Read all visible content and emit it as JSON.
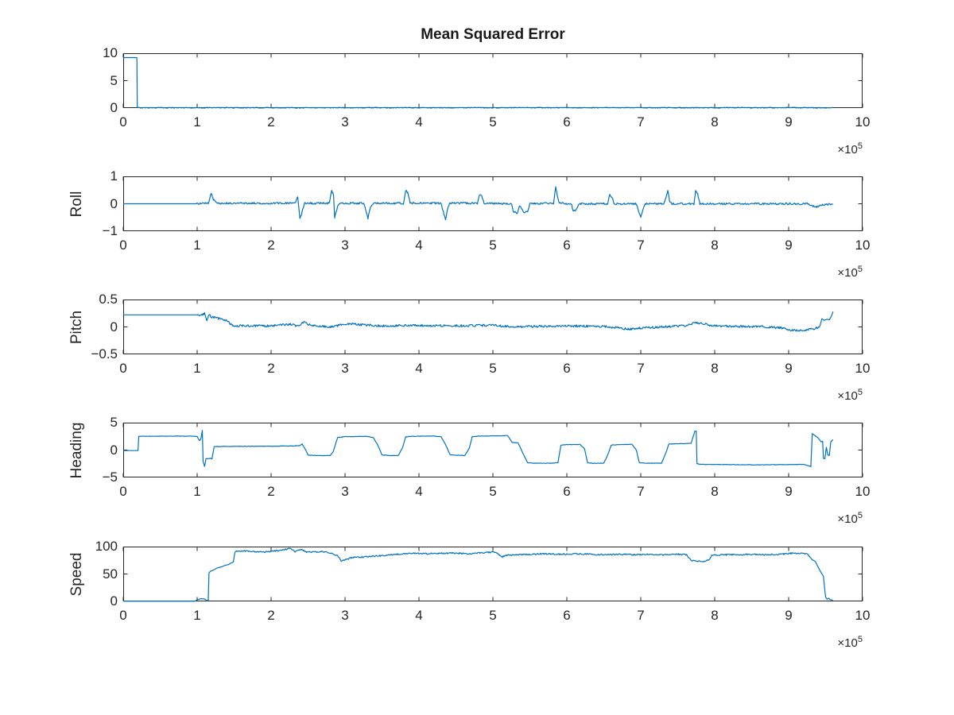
{
  "figure": {
    "title": "Mean Squared Error",
    "background": "#ffffff",
    "axis_color": "#262626",
    "line_color": "#0072BD",
    "offset_label": {
      "base": "×10",
      "exp": "5"
    }
  },
  "chart_data": [
    {
      "type": "line",
      "name": "mse",
      "title": "Mean Squared Error",
      "ylabel": "",
      "xlim": [
        0,
        10
      ],
      "ylim": [
        0,
        10
      ],
      "x_unit": "1e5",
      "xticks": [
        0,
        1,
        2,
        3,
        4,
        5,
        6,
        7,
        8,
        9,
        10
      ],
      "xtick_labels": [
        "0",
        "1",
        "2",
        "3",
        "4",
        "5",
        "6",
        "7",
        "8",
        "9",
        "10"
      ],
      "yticks": [
        0,
        5,
        10
      ],
      "ytick_labels": [
        "0",
        "5",
        "10"
      ],
      "keypoints": [
        [
          0,
          9.2
        ],
        [
          0.185,
          9.2
        ],
        [
          0.19,
          0.06
        ],
        [
          9.6,
          0.06
        ]
      ],
      "noise": [
        [
          0.19,
          9.6,
          0.08
        ]
      ]
    },
    {
      "type": "line",
      "name": "roll",
      "title": "",
      "ylabel": "Roll",
      "xlim": [
        0,
        10
      ],
      "ylim": [
        -1,
        1
      ],
      "x_unit": "1e5",
      "xticks": [
        0,
        1,
        2,
        3,
        4,
        5,
        6,
        7,
        8,
        9,
        10
      ],
      "xtick_labels": [
        "0",
        "1",
        "2",
        "3",
        "4",
        "5",
        "6",
        "7",
        "8",
        "9",
        "10"
      ],
      "yticks": [
        -1,
        0,
        1
      ],
      "ytick_labels": [
        "−1",
        "0",
        "1"
      ],
      "keypoints": [
        [
          0,
          0
        ],
        [
          1.0,
          0
        ],
        [
          1.15,
          0.02
        ],
        [
          1.19,
          0.38
        ],
        [
          1.22,
          0.15
        ],
        [
          1.26,
          0.05
        ],
        [
          1.32,
          0.02
        ],
        [
          2.33,
          0.02
        ],
        [
          2.36,
          0.28
        ],
        [
          2.39,
          -0.55
        ],
        [
          2.42,
          -0.3
        ],
        [
          2.45,
          0.02
        ],
        [
          2.79,
          0.02
        ],
        [
          2.82,
          0.5
        ],
        [
          2.845,
          0.3
        ],
        [
          2.86,
          -0.5
        ],
        [
          2.89,
          -0.2
        ],
        [
          2.92,
          0.02
        ],
        [
          3.25,
          0.02
        ],
        [
          3.28,
          -0.2
        ],
        [
          3.31,
          -0.55
        ],
        [
          3.34,
          -0.15
        ],
        [
          3.38,
          0.02
        ],
        [
          3.79,
          0.02
        ],
        [
          3.82,
          0.5
        ],
        [
          3.85,
          0.4
        ],
        [
          3.88,
          0.02
        ],
        [
          4.3,
          0.02
        ],
        [
          4.33,
          -0.3
        ],
        [
          4.36,
          -0.6
        ],
        [
          4.39,
          -0.15
        ],
        [
          4.42,
          0.02
        ],
        [
          4.79,
          0.02
        ],
        [
          4.82,
          0.35
        ],
        [
          4.85,
          0.28
        ],
        [
          4.88,
          0.02
        ],
        [
          5.25,
          0
        ],
        [
          5.28,
          -0.3
        ],
        [
          5.33,
          -0.33
        ],
        [
          5.36,
          -0.05
        ],
        [
          5.42,
          -0.3
        ],
        [
          5.47,
          -0.28
        ],
        [
          5.5,
          0
        ],
        [
          5.82,
          0.02
        ],
        [
          5.85,
          0.65
        ],
        [
          5.87,
          0.3
        ],
        [
          5.9,
          0.02
        ],
        [
          6.06,
          0
        ],
        [
          6.09,
          -0.28
        ],
        [
          6.13,
          -0.22
        ],
        [
          6.16,
          0
        ],
        [
          6.55,
          0
        ],
        [
          6.58,
          0.32
        ],
        [
          6.61,
          0.25
        ],
        [
          6.64,
          0
        ],
        [
          6.94,
          0
        ],
        [
          6.97,
          -0.25
        ],
        [
          7.0,
          -0.5
        ],
        [
          7.03,
          -0.2
        ],
        [
          7.06,
          0
        ],
        [
          7.31,
          0
        ],
        [
          7.34,
          0.22
        ],
        [
          7.365,
          0.5
        ],
        [
          7.39,
          0.1
        ],
        [
          7.42,
          0
        ],
        [
          7.72,
          0
        ],
        [
          7.74,
          0.45
        ],
        [
          7.77,
          0.35
        ],
        [
          7.8,
          0
        ],
        [
          9.25,
          0
        ],
        [
          9.32,
          -0.08
        ],
        [
          9.38,
          -0.12
        ],
        [
          9.45,
          -0.05
        ],
        [
          9.55,
          -0.02
        ],
        [
          9.6,
          -0.02
        ]
      ],
      "noise": [
        [
          1.0,
          9.6,
          0.035
        ]
      ]
    },
    {
      "type": "line",
      "name": "pitch",
      "title": "",
      "ylabel": "Pitch",
      "xlim": [
        0,
        10
      ],
      "ylim": [
        -0.5,
        0.5
      ],
      "x_unit": "1e5",
      "xticks": [
        0,
        1,
        2,
        3,
        4,
        5,
        6,
        7,
        8,
        9,
        10
      ],
      "xtick_labels": [
        "0",
        "1",
        "2",
        "3",
        "4",
        "5",
        "6",
        "7",
        "8",
        "9",
        "10"
      ],
      "yticks": [
        -0.5,
        0,
        0.5
      ],
      "ytick_labels": [
        "−0.5",
        "0",
        "0.5"
      ],
      "keypoints": [
        [
          0,
          0.22
        ],
        [
          1.0,
          0.22
        ],
        [
          1.05,
          0.21
        ],
        [
          1.1,
          0.24
        ],
        [
          1.13,
          0.1
        ],
        [
          1.16,
          0.22
        ],
        [
          1.2,
          0.18
        ],
        [
          1.3,
          0.15
        ],
        [
          1.4,
          0.12
        ],
        [
          1.45,
          0.05
        ],
        [
          1.5,
          0.02
        ],
        [
          1.7,
          0.02
        ],
        [
          2.0,
          0.02
        ],
        [
          2.25,
          0.05
        ],
        [
          2.35,
          0.02
        ],
        [
          2.45,
          0.08
        ],
        [
          2.55,
          0.02
        ],
        [
          2.8,
          0.0
        ],
        [
          3.05,
          0.06
        ],
        [
          3.2,
          0.04
        ],
        [
          3.5,
          0.02
        ],
        [
          4.0,
          0.03
        ],
        [
          4.5,
          0.02
        ],
        [
          5.0,
          0.03
        ],
        [
          5.3,
          0.0
        ],
        [
          5.6,
          0.01
        ],
        [
          6.0,
          0.02
        ],
        [
          6.5,
          0.01
        ],
        [
          6.85,
          -0.04
        ],
        [
          7.0,
          -0.02
        ],
        [
          7.3,
          0.0
        ],
        [
          7.6,
          0.02
        ],
        [
          7.72,
          0.08
        ],
        [
          7.85,
          0.06
        ],
        [
          7.95,
          0.02
        ],
        [
          8.3,
          0.01
        ],
        [
          8.6,
          0.01
        ],
        [
          8.9,
          -0.02
        ],
        [
          9.05,
          -0.06
        ],
        [
          9.2,
          -0.06
        ],
        [
          9.35,
          -0.03
        ],
        [
          9.42,
          0.0
        ],
        [
          9.45,
          0.15
        ],
        [
          9.48,
          0.12
        ],
        [
          9.52,
          0.14
        ],
        [
          9.55,
          0.13
        ],
        [
          9.58,
          0.2
        ],
        [
          9.6,
          0.28
        ]
      ],
      "noise": [
        [
          1.0,
          9.42,
          0.02
        ]
      ]
    },
    {
      "type": "line",
      "name": "heading",
      "title": "",
      "ylabel": "Heading",
      "xlim": [
        0,
        10
      ],
      "ylim": [
        -5,
        5
      ],
      "x_unit": "1e5",
      "xticks": [
        0,
        1,
        2,
        3,
        4,
        5,
        6,
        7,
        8,
        9,
        10
      ],
      "xtick_labels": [
        "0",
        "1",
        "2",
        "3",
        "4",
        "5",
        "6",
        "7",
        "8",
        "9",
        "10"
      ],
      "yticks": [
        -5,
        0,
        5
      ],
      "ytick_labels": [
        "−5",
        "0",
        "5"
      ],
      "keypoints": [
        [
          0,
          -0.1
        ],
        [
          0.2,
          -0.1
        ],
        [
          0.21,
          2.5
        ],
        [
          0.8,
          2.55
        ],
        [
          1.0,
          2.5
        ],
        [
          1.03,
          1.7
        ],
        [
          1.05,
          2.0
        ],
        [
          1.07,
          3.6
        ],
        [
          1.08,
          -2.0
        ],
        [
          1.1,
          -3.0
        ],
        [
          1.12,
          -1.6
        ],
        [
          1.18,
          -1.5
        ],
        [
          1.2,
          -1.6
        ],
        [
          1.23,
          0.6
        ],
        [
          1.3,
          0.65
        ],
        [
          2.0,
          0.7
        ],
        [
          2.3,
          0.75
        ],
        [
          2.38,
          0.8
        ],
        [
          2.42,
          1.1
        ],
        [
          2.46,
          0.2
        ],
        [
          2.5,
          -0.9
        ],
        [
          2.6,
          -1.0
        ],
        [
          2.8,
          -1.0
        ],
        [
          2.84,
          -0.3
        ],
        [
          2.9,
          2.3
        ],
        [
          3.0,
          2.45
        ],
        [
          3.3,
          2.5
        ],
        [
          3.38,
          2.3
        ],
        [
          3.44,
          1.0
        ],
        [
          3.5,
          -0.9
        ],
        [
          3.6,
          -1.0
        ],
        [
          3.72,
          -1.0
        ],
        [
          3.78,
          0.5
        ],
        [
          3.82,
          2.4
        ],
        [
          3.9,
          2.5
        ],
        [
          4.2,
          2.55
        ],
        [
          4.3,
          2.4
        ],
        [
          4.36,
          1.0
        ],
        [
          4.42,
          -0.85
        ],
        [
          4.5,
          -0.95
        ],
        [
          4.62,
          -1.0
        ],
        [
          4.68,
          0.3
        ],
        [
          4.72,
          2.4
        ],
        [
          4.8,
          2.55
        ],
        [
          5.1,
          2.6
        ],
        [
          5.2,
          2.65
        ],
        [
          5.26,
          1.4
        ],
        [
          5.3,
          1.35
        ],
        [
          5.34,
          1.3
        ],
        [
          5.38,
          0.2
        ],
        [
          5.42,
          -1.0
        ],
        [
          5.47,
          -2.3
        ],
        [
          5.55,
          -2.4
        ],
        [
          5.8,
          -2.4
        ],
        [
          5.88,
          -2.3
        ],
        [
          5.92,
          0.9
        ],
        [
          6.0,
          1.0
        ],
        [
          6.18,
          1.0
        ],
        [
          6.24,
          0.2
        ],
        [
          6.28,
          -2.3
        ],
        [
          6.35,
          -2.4
        ],
        [
          6.5,
          -2.4
        ],
        [
          6.55,
          -1.0
        ],
        [
          6.6,
          0.9
        ],
        [
          6.7,
          1.0
        ],
        [
          6.88,
          1.05
        ],
        [
          6.94,
          0.0
        ],
        [
          6.98,
          -2.3
        ],
        [
          7.05,
          -2.4
        ],
        [
          7.28,
          -2.4
        ],
        [
          7.34,
          -0.5
        ],
        [
          7.38,
          1.1
        ],
        [
          7.5,
          1.15
        ],
        [
          7.68,
          1.2
        ],
        [
          7.73,
          3.4
        ],
        [
          7.75,
          3.5
        ],
        [
          7.76,
          -2.5
        ],
        [
          7.8,
          -2.6
        ],
        [
          8.2,
          -2.65
        ],
        [
          8.6,
          -2.7
        ],
        [
          9.0,
          -2.65
        ],
        [
          9.2,
          -2.6
        ],
        [
          9.28,
          -2.9
        ],
        [
          9.3,
          -3.0
        ],
        [
          9.32,
          3.0
        ],
        [
          9.36,
          2.6
        ],
        [
          9.4,
          2.2
        ],
        [
          9.44,
          1.5
        ],
        [
          9.46,
          1.6
        ],
        [
          9.47,
          -1.5
        ],
        [
          9.49,
          -1.6
        ],
        [
          9.51,
          0.5
        ],
        [
          9.53,
          -0.9
        ],
        [
          9.55,
          -1.0
        ],
        [
          9.57,
          1.5
        ],
        [
          9.6,
          1.9
        ]
      ],
      "noise": [
        [
          0.22,
          9.3,
          0.04
        ]
      ]
    },
    {
      "type": "line",
      "name": "speed",
      "title": "",
      "ylabel": "Speed",
      "xlim": [
        0,
        10
      ],
      "ylim": [
        0,
        100
      ],
      "x_unit": "1e5",
      "xticks": [
        0,
        1,
        2,
        3,
        4,
        5,
        6,
        7,
        8,
        9,
        10
      ],
      "xtick_labels": [
        "0",
        "1",
        "2",
        "3",
        "4",
        "5",
        "6",
        "7",
        "8",
        "9",
        "10"
      ],
      "yticks": [
        0,
        50,
        100
      ],
      "ytick_labels": [
        "0",
        "50",
        "100"
      ],
      "keypoints": [
        [
          0,
          0.4
        ],
        [
          0.97,
          0.4
        ],
        [
          1.0,
          3
        ],
        [
          1.05,
          5
        ],
        [
          1.1,
          4.5
        ],
        [
          1.13,
          1.5
        ],
        [
          1.15,
          2
        ],
        [
          1.16,
          52
        ],
        [
          1.18,
          55
        ],
        [
          1.22,
          57
        ],
        [
          1.27,
          61
        ],
        [
          1.33,
          63
        ],
        [
          1.38,
          66
        ],
        [
          1.42,
          67
        ],
        [
          1.46,
          70
        ],
        [
          1.49,
          72
        ],
        [
          1.51,
          90
        ],
        [
          1.55,
          91
        ],
        [
          1.65,
          92
        ],
        [
          1.75,
          91
        ],
        [
          1.9,
          90
        ],
        [
          2.05,
          92
        ],
        [
          2.15,
          93
        ],
        [
          2.25,
          97
        ],
        [
          2.32,
          91
        ],
        [
          2.4,
          95
        ],
        [
          2.48,
          90
        ],
        [
          2.6,
          90
        ],
        [
          2.7,
          91
        ],
        [
          2.8,
          88
        ],
        [
          2.9,
          84
        ],
        [
          2.95,
          73
        ],
        [
          3.0,
          76
        ],
        [
          3.1,
          80
        ],
        [
          3.25,
          81
        ],
        [
          3.45,
          83
        ],
        [
          3.7,
          86
        ],
        [
          3.9,
          88
        ],
        [
          4.1,
          87
        ],
        [
          4.3,
          88
        ],
        [
          4.5,
          88
        ],
        [
          4.7,
          87
        ],
        [
          4.9,
          89
        ],
        [
          5.0,
          90
        ],
        [
          5.05,
          88
        ],
        [
          5.12,
          81
        ],
        [
          5.18,
          84
        ],
        [
          5.3,
          85
        ],
        [
          5.5,
          86
        ],
        [
          5.7,
          87
        ],
        [
          5.9,
          86
        ],
        [
          6.1,
          87
        ],
        [
          6.3,
          86
        ],
        [
          6.5,
          85
        ],
        [
          6.7,
          86
        ],
        [
          6.9,
          85
        ],
        [
          7.1,
          86
        ],
        [
          7.3,
          85
        ],
        [
          7.5,
          86
        ],
        [
          7.62,
          85
        ],
        [
          7.68,
          75
        ],
        [
          7.75,
          73
        ],
        [
          7.85,
          73
        ],
        [
          7.92,
          75
        ],
        [
          7.96,
          84
        ],
        [
          8.1,
          85
        ],
        [
          8.3,
          85
        ],
        [
          8.5,
          86
        ],
        [
          8.7,
          85
        ],
        [
          8.9,
          86
        ],
        [
          9.05,
          88
        ],
        [
          9.15,
          87
        ],
        [
          9.25,
          87
        ],
        [
          9.28,
          82
        ],
        [
          9.32,
          76
        ],
        [
          9.36,
          73
        ],
        [
          9.39,
          65
        ],
        [
          9.42,
          57
        ],
        [
          9.45,
          50
        ],
        [
          9.47,
          46
        ],
        [
          9.49,
          20
        ],
        [
          9.5,
          8
        ],
        [
          9.52,
          4
        ],
        [
          9.54,
          6
        ],
        [
          9.56,
          3
        ],
        [
          9.58,
          3
        ],
        [
          9.6,
          1
        ]
      ],
      "noise": [
        [
          1.51,
          9.28,
          1.3
        ]
      ]
    }
  ]
}
